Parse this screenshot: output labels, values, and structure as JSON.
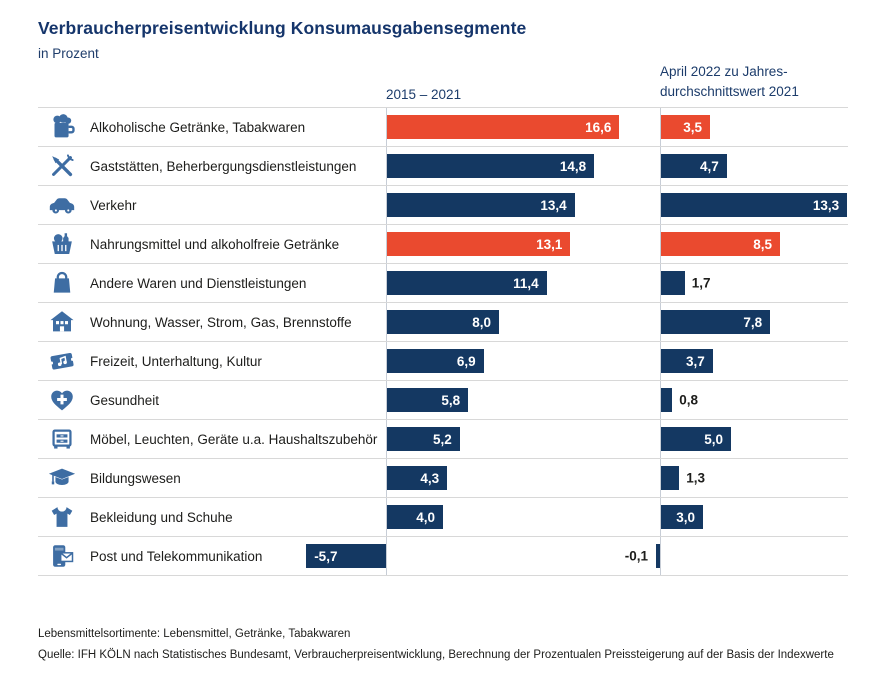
{
  "title": "Verbraucherpreisentwicklung Konsumausgabensegmente",
  "subtitle": "in Prozent",
  "columns": [
    {
      "label": "2015 – 2021"
    },
    {
      "line1": "April 2022 zu Jahres-",
      "line2": "durchschnittswert 2021"
    }
  ],
  "footnote": "Lebensmittelsortimente: Lebensmittel, Getränke, Tabakwaren",
  "source": "Quelle: IFH KÖLN nach Statistisches Bundesamt, Verbraucherpreisentwicklung, Berechnung der Prozentualen Preissteigerung auf der Basis der Indexwerte",
  "colors": {
    "navy": "#143862",
    "orange": "#EA4A2F",
    "icon_blue": "#3E6DA3",
    "title_navy": "#15356B",
    "grid": "#D8D8D8",
    "axis": "#C7CDD6"
  },
  "chart_data": {
    "type": "bar",
    "orientation": "horizontal",
    "unit": "Prozent",
    "title": "Verbraucherpreisentwicklung Konsumausgabensegmente",
    "series": [
      {
        "name": "2015 – 2021"
      },
      {
        "name": "April 2022 zu Jahresdurchschnittswert 2021"
      }
    ],
    "highlight_meaning": "Lebensmittelsortimente (orange hervorgehoben)",
    "rows": [
      {
        "icon": "beer-mug",
        "label": "Alkoholische Getränke, Tabakwaren",
        "values": [
          16.6,
          3.5
        ],
        "labels": [
          "16,6",
          "3,5"
        ],
        "highlight": true
      },
      {
        "icon": "cutlery",
        "label": "Gaststätten, Beherbergungsdienstleistungen",
        "values": [
          14.8,
          4.7
        ],
        "labels": [
          "14,8",
          "4,7"
        ],
        "highlight": false
      },
      {
        "icon": "car",
        "label": "Verkehr",
        "values": [
          13.4,
          13.3
        ],
        "labels": [
          "13,4",
          "13,3"
        ],
        "highlight": false
      },
      {
        "icon": "shopping-basket",
        "label": "Nahrungsmittel und alkoholfreie Getränke",
        "values": [
          13.1,
          8.5
        ],
        "labels": [
          "13,1",
          "8,5"
        ],
        "highlight": true
      },
      {
        "icon": "shopping-bag",
        "label": "Andere Waren und Dienstleistungen",
        "values": [
          11.4,
          1.7
        ],
        "labels": [
          "11,4",
          "1,7"
        ],
        "highlight": false
      },
      {
        "icon": "house",
        "label": "Wohnung, Wasser, Strom, Gas, Brennstoffe",
        "values": [
          8.0,
          7.8
        ],
        "labels": [
          "8,0",
          "7,8"
        ],
        "highlight": false
      },
      {
        "icon": "ticket-music",
        "label": "Freizeit, Unterhaltung, Kultur",
        "values": [
          6.9,
          3.7
        ],
        "labels": [
          "6,9",
          "3,7"
        ],
        "highlight": false
      },
      {
        "icon": "heart-cross",
        "label": "Gesundheit",
        "values": [
          5.8,
          0.8
        ],
        "labels": [
          "5,8",
          "0,8"
        ],
        "highlight": false
      },
      {
        "icon": "furniture",
        "label": "Möbel, Leuchten, Geräte u.a. Haushaltszubehör",
        "values": [
          5.2,
          5.0
        ],
        "labels": [
          "5,2",
          "5,0"
        ],
        "highlight": false
      },
      {
        "icon": "graduation-cap",
        "label": "Bildungswesen",
        "values": [
          4.3,
          1.3
        ],
        "labels": [
          "4,3",
          "1,3"
        ],
        "highlight": false
      },
      {
        "icon": "t-shirt",
        "label": "Bekleidung und Schuhe",
        "values": [
          4.0,
          3.0
        ],
        "labels": [
          "4,0",
          "3,0"
        ],
        "highlight": false
      },
      {
        "icon": "phone-mail",
        "label": "Post und Telekommunikation",
        "values": [
          -5.7,
          -0.1
        ],
        "labels": [
          "-5,7",
          "-0,1"
        ],
        "highlight": false
      }
    ]
  }
}
